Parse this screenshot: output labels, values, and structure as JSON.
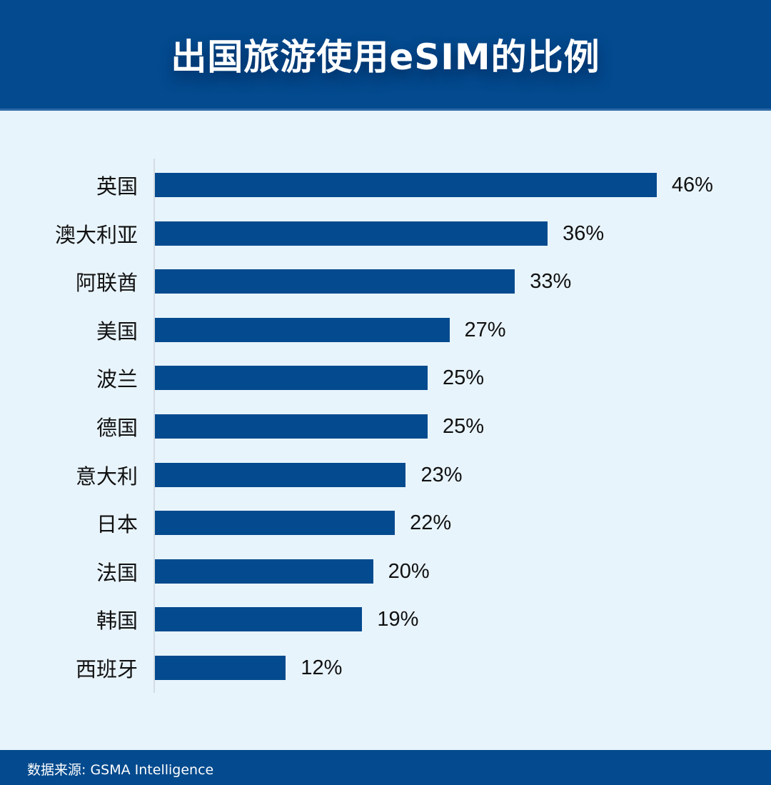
{
  "header": {
    "title": "出国旅游使用eSIM的比例"
  },
  "footer": {
    "source": "数据来源: GSMA Intelligence"
  },
  "colors": {
    "bar": "#034a8e",
    "background": "#e8f4fc",
    "header": "#034a8e"
  },
  "chart_data": {
    "type": "bar",
    "orientation": "horizontal",
    "title": "出国旅游使用eSIM的比例",
    "categories": [
      "英国",
      "澳大利亚",
      "阿联酋",
      "美国",
      "波兰",
      "德国",
      "意大利",
      "日本",
      "法国",
      "韩国",
      "西班牙"
    ],
    "values": [
      46,
      36,
      33,
      27,
      25,
      25,
      23,
      22,
      20,
      19,
      12
    ],
    "value_labels": [
      "46%",
      "36%",
      "33%",
      "27%",
      "25%",
      "25%",
      "23%",
      "22%",
      "20%",
      "19%",
      "12%"
    ],
    "xlabel": "",
    "ylabel": "",
    "unit": "%",
    "grid": false,
    "legend": "none",
    "source": "数据来源: GSMA Intelligence"
  }
}
